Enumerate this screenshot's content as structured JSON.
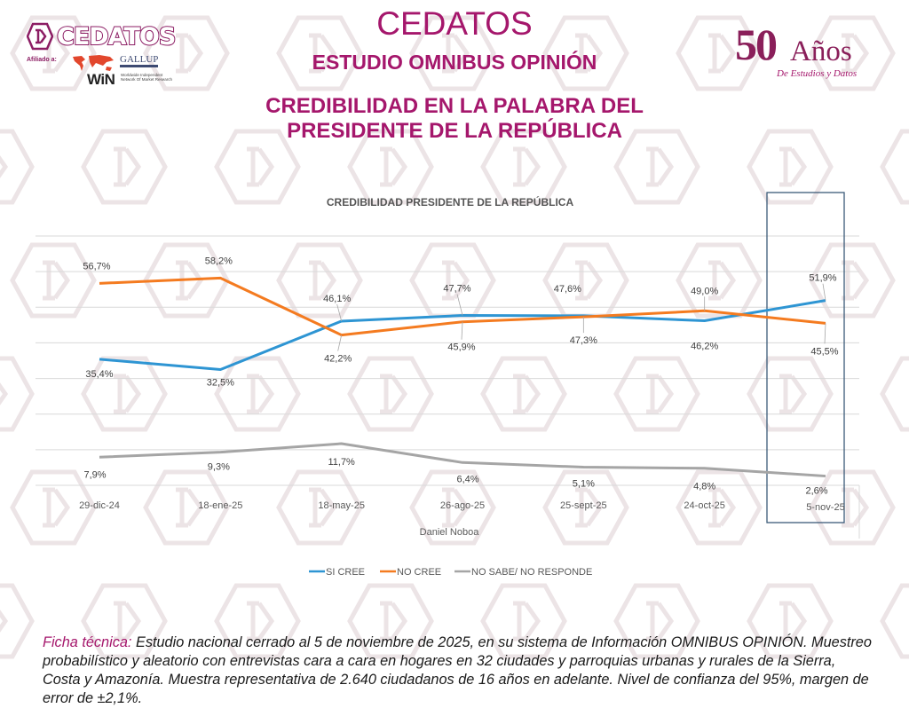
{
  "header": {
    "logo": {
      "brand": "CEDATOS",
      "affiliation_label": "Afiliado a:",
      "partner_1": "GALLUP",
      "partner_1_sub": "INTERNATIONAL",
      "partner_2": "WiN",
      "partner_2_sub": "Worldwide Independent Network Of Market Research"
    },
    "title": "CEDATOS",
    "subtitle": "ESTUDIO OMNIBUS OPINIÓN",
    "topic_line_1": "CREDIBILIDAD EN LA PALABRA DEL",
    "topic_line_2": "PRESIDENTE DE LA REPÚBLICA",
    "anniversary": {
      "number": "50",
      "word": "Años",
      "tagline": "De Estudios y Datos"
    }
  },
  "colors": {
    "brand": "#a5176c",
    "si_cree": "#2e95d3",
    "no_cree": "#f47b20",
    "no_sabe": "#a5a5a5",
    "highlight_box": "#3b5a78",
    "grid": "#d9d9d9"
  },
  "chart_data": {
    "type": "line",
    "title": "CREDIBILIDAD PRESIDENTE DE LA REPÚBLICA",
    "xlabel": "Daniel Noboa",
    "ylabel": "",
    "ylim": [
      0,
      70
    ],
    "y_gridlines": [
      0,
      10,
      20,
      30,
      40,
      50,
      60,
      70
    ],
    "grid": true,
    "y_tick_labels_visible": false,
    "legend_position": "bottom",
    "categories": [
      "29-dic-24",
      "18-ene-25",
      "18-may-25",
      "26-ago-25",
      "25-sept-25",
      "24-oct-25",
      "5-nov-25"
    ],
    "highlighted_category": "5-nov-25",
    "series": [
      {
        "name": "SI CREE",
        "color_key": "si_cree",
        "values": [
          35.4,
          32.5,
          46.1,
          47.7,
          47.6,
          46.2,
          51.9
        ],
        "labels": [
          "35,4%",
          "32,5%",
          "46,1%",
          "47,7%",
          "47,6%",
          "46,2%",
          "51,9%"
        ]
      },
      {
        "name": "NO CREE",
        "color_key": "no_cree",
        "values": [
          56.7,
          58.2,
          42.2,
          45.9,
          47.3,
          49.0,
          45.5
        ],
        "labels": [
          "56,7%",
          "58,2%",
          "42,2%",
          "45,9%",
          "47,3%",
          "49,0%",
          "45,5%"
        ]
      },
      {
        "name": "NO SABE/ NO RESPONDE",
        "color_key": "no_sabe",
        "values": [
          7.9,
          9.3,
          11.7,
          6.4,
          5.1,
          4.8,
          2.6
        ],
        "labels": [
          "7,9%",
          "9,3%",
          "11,7%",
          "6,4%",
          "5,1%",
          "4,8%",
          "2,6%"
        ]
      }
    ]
  },
  "footer": {
    "lead": "Ficha técnica:",
    "text": " Estudio nacional cerrado al 5 de noviembre de 2025, en su sistema de Información OMNIBUS OPINIÓN. Muestreo probabilístico y aleatorio con entrevistas cara a cara en hogares en 32 ciudades y parroquias urbanas y rurales de la Sierra, Costa y Amazonía. Muestra representativa de 2.640 ciudadanos de 16 años en adelante. Nivel de confianza del 95%, margen de error de ±2,1%."
  }
}
